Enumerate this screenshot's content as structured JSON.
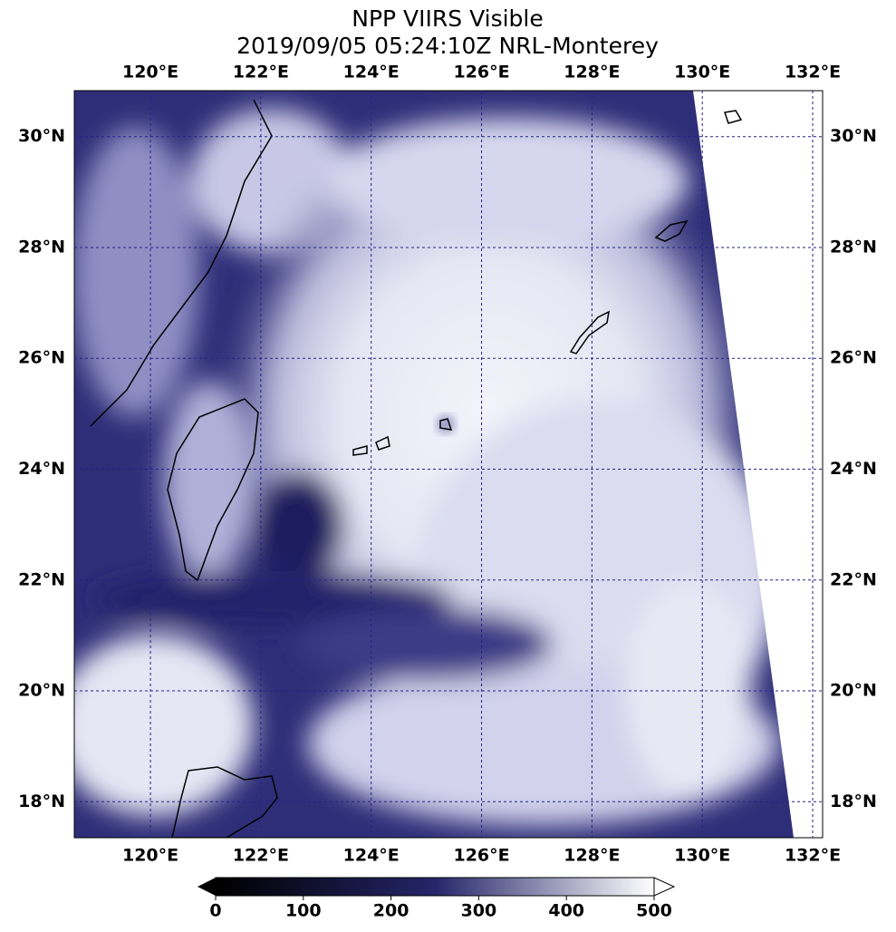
{
  "chart_data": {
    "type": "map",
    "title": "NPP VIIRS Visible",
    "subtitle": "2019/09/05 05:24:10Z NRL-Monterey",
    "xlim": [
      118.62,
      132.18
    ],
    "ylim": [
      17.35,
      30.83
    ],
    "xticks": [
      {
        "value": 120,
        "label": "120°E"
      },
      {
        "value": 122,
        "label": "122°E"
      },
      {
        "value": 124,
        "label": "124°E"
      },
      {
        "value": 126,
        "label": "126°E"
      },
      {
        "value": 128,
        "label": "128°E"
      },
      {
        "value": 130,
        "label": "130°E"
      },
      {
        "value": 132,
        "label": "132°E"
      }
    ],
    "yticks": [
      {
        "value": 18,
        "label": "18°N"
      },
      {
        "value": 20,
        "label": "20°N"
      },
      {
        "value": 22,
        "label": "22°N"
      },
      {
        "value": 24,
        "label": "24°N"
      },
      {
        "value": 26,
        "label": "26°N"
      },
      {
        "value": 28,
        "label": "28°N"
      },
      {
        "value": 30,
        "label": "30°N"
      }
    ],
    "grid": true,
    "colorbar": {
      "lim": [
        0,
        500
      ],
      "ticks": [
        0,
        100,
        200,
        300,
        400,
        500
      ],
      "colors": [
        "#000000",
        "#25256a",
        "#ffffff"
      ]
    }
  }
}
